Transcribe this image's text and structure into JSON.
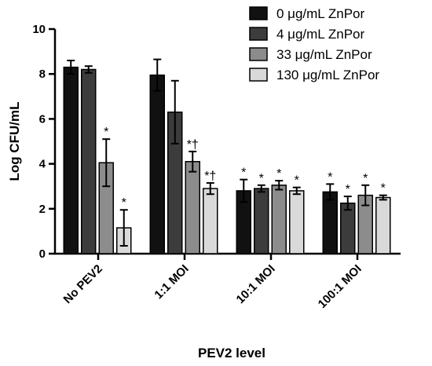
{
  "chart_data": {
    "type": "bar",
    "xlabel": "PEV2 level",
    "ylabel": "Log CFU/mL",
    "ylim": [
      0,
      10
    ],
    "yticks": [
      0,
      2,
      4,
      6,
      8,
      10
    ],
    "categories": [
      "No PEV2",
      "1:1 MOI",
      "10:1 MOI",
      "100:1 MOI"
    ],
    "legend_position": "top-right",
    "grid": false,
    "series": [
      {
        "name": "0 μg/mL ZnPor",
        "color": "#111111",
        "values": [
          8.3,
          7.95,
          2.8,
          2.75
        ],
        "errors": [
          0.3,
          0.7,
          0.5,
          0.35
        ],
        "annotations": [
          "",
          "",
          "*",
          "*"
        ]
      },
      {
        "name": "4 μg/mL ZnPor",
        "color": "#3c3c3c",
        "values": [
          8.2,
          6.3,
          2.9,
          2.25
        ],
        "errors": [
          0.15,
          1.4,
          0.15,
          0.3
        ],
        "annotations": [
          "",
          "",
          "*",
          "*"
        ]
      },
      {
        "name": "33 μg/mL ZnPor",
        "color": "#8c8c8c",
        "values": [
          4.05,
          4.1,
          3.05,
          2.6
        ],
        "errors": [
          1.05,
          0.45,
          0.2,
          0.45
        ],
        "annotations": [
          "*",
          "*†",
          "*",
          "*"
        ]
      },
      {
        "name": "130 μg/mL ZnPor",
        "color": "#d9d9d9",
        "values": [
          1.15,
          2.9,
          2.8,
          2.5
        ],
        "errors": [
          0.8,
          0.25,
          0.15,
          0.1
        ],
        "annotations": [
          "*",
          "*†",
          "*",
          "*"
        ]
      }
    ]
  }
}
